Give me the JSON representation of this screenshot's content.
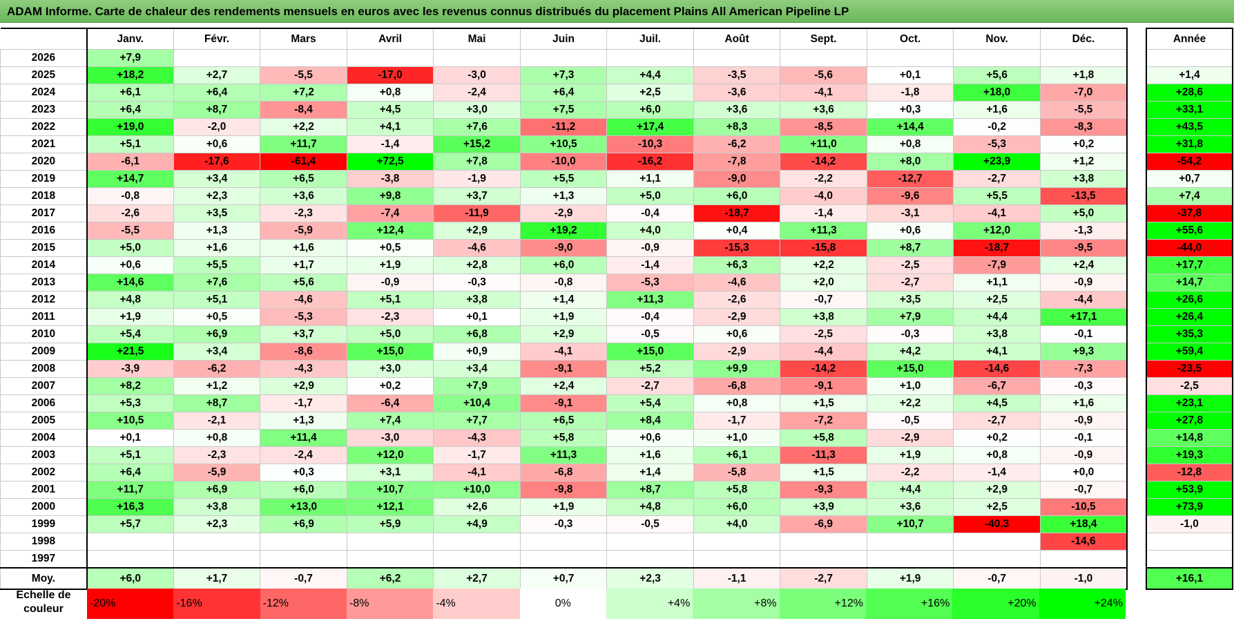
{
  "title": "ADAM Informe. Carte de chaleur des rendements mensuels en euros avec les revenus connus distribués du placement Plains All American Pipeline LP",
  "months": [
    "Janv.",
    "Févr.",
    "Mars",
    "Avril",
    "Mai",
    "Juin",
    "Juil.",
    "Août",
    "Sept.",
    "Oct.",
    "Nov.",
    "Déc."
  ],
  "year_header": "Année",
  "avg_label": "Moy.",
  "scale_label_line1": "Echelle de",
  "scale_label_line2": "couleur",
  "colors": {
    "neg_strong": "#ff0000",
    "pos_strong": "#00ff00",
    "neutral": "#ffffff"
  },
  "chart_data": {
    "type": "heatmap",
    "title": "ADAM Informe. Carte de chaleur des rendements mensuels en euros avec les revenus connus distribués du placement Plains All American Pipeline LP",
    "x": [
      "Janv.",
      "Févr.",
      "Mars",
      "Avril",
      "Mai",
      "Juin",
      "Juil.",
      "Août",
      "Sept.",
      "Oct.",
      "Nov.",
      "Déc."
    ],
    "rows": [
      {
        "year": "2026",
        "values": [
          "+7,9",
          "",
          "",
          "",
          "",
          "",
          "",
          "",
          "",
          "",
          "",
          ""
        ],
        "annual": ""
      },
      {
        "year": "2025",
        "values": [
          "+18,2",
          "+2,7",
          "-5,5",
          "-17,0",
          "-3,0",
          "+7,3",
          "+4,4",
          "-3,5",
          "-5,6",
          "+0,1",
          "+5,6",
          "+1,8"
        ],
        "annual": "+1,4"
      },
      {
        "year": "2024",
        "values": [
          "+6,1",
          "+6,4",
          "+7,2",
          "+0,8",
          "-2,4",
          "+6,4",
          "+2,5",
          "-3,6",
          "-4,1",
          "-1,8",
          "+18,0",
          "-7,0"
        ],
        "annual": "+28,6"
      },
      {
        "year": "2023",
        "values": [
          "+6,4",
          "+8,7",
          "-8,4",
          "+4,5",
          "+3,0",
          "+7,5",
          "+6,0",
          "+3,6",
          "+3,6",
          "+0,3",
          "+1,6",
          "-5,5"
        ],
        "annual": "+33,1"
      },
      {
        "year": "2022",
        "values": [
          "+19,0",
          "-2,0",
          "+2,2",
          "+4,1",
          "+7,6",
          "-11,2",
          "+17,4",
          "+8,3",
          "-8,5",
          "+14,4",
          "-0,2",
          "-8,3"
        ],
        "annual": "+43,5"
      },
      {
        "year": "2021",
        "values": [
          "+5,1",
          "+0,6",
          "+11,7",
          "-1,4",
          "+15,2",
          "+10,5",
          "-10,3",
          "-6,2",
          "+11,0",
          "+0,8",
          "-5,3",
          "+0,2"
        ],
        "annual": "+31,8"
      },
      {
        "year": "2020",
        "values": [
          "-6,1",
          "-17,6",
          "-61,4",
          "+72,5",
          "+7,8",
          "-10,0",
          "-16,2",
          "-7,8",
          "-14,2",
          "+8,0",
          "+23,9",
          "+1,2"
        ],
        "annual": "-54,2"
      },
      {
        "year": "2019",
        "values": [
          "+14,7",
          "+3,4",
          "+6,5",
          "-3,8",
          "-1,9",
          "+5,5",
          "+1,1",
          "-9,0",
          "-2,2",
          "-12,7",
          "-2,7",
          "+3,8"
        ],
        "annual": "+0,7"
      },
      {
        "year": "2018",
        "values": [
          "-0,8",
          "+2,3",
          "+3,6",
          "+9,8",
          "+3,7",
          "+1,3",
          "+5,0",
          "+6,0",
          "-4,0",
          "-9,6",
          "+5,5",
          "-13,5"
        ],
        "annual": "+7,4"
      },
      {
        "year": "2017",
        "values": [
          "-2,6",
          "+3,5",
          "-2,3",
          "-7,4",
          "-11,9",
          "-2,9",
          "-0,4",
          "-18,7",
          "-1,4",
          "-3,1",
          "-4,1",
          "+5,0"
        ],
        "annual": "-37,8"
      },
      {
        "year": "2016",
        "values": [
          "-5,5",
          "+1,3",
          "-5,9",
          "+12,4",
          "+2,9",
          "+19,2",
          "+4,0",
          "+0,4",
          "+11,3",
          "+0,6",
          "+12,0",
          "-1,3"
        ],
        "annual": "+55,6"
      },
      {
        "year": "2015",
        "values": [
          "+5,0",
          "+1,6",
          "+1,6",
          "+0,5",
          "-4,6",
          "-9,0",
          "-0,9",
          "-15,3",
          "-15,8",
          "+8,7",
          "-18,7",
          "-9,5"
        ],
        "annual": "-44,0"
      },
      {
        "year": "2014",
        "values": [
          "+0,6",
          "+5,5",
          "+1,7",
          "+1,9",
          "+2,8",
          "+6,0",
          "-1,4",
          "+6,3",
          "+2,2",
          "-2,5",
          "-7,9",
          "+2,4"
        ],
        "annual": "+17,7"
      },
      {
        "year": "2013",
        "values": [
          "+14,6",
          "+7,6",
          "+5,6",
          "-0,9",
          "-0,3",
          "-0,8",
          "-5,3",
          "-4,6",
          "+2,0",
          "-2,7",
          "+1,1",
          "-0,9"
        ],
        "annual": "+14,7"
      },
      {
        "year": "2012",
        "values": [
          "+4,8",
          "+5,1",
          "-4,6",
          "+5,1",
          "+3,8",
          "+1,4",
          "+11,3",
          "-2,6",
          "-0,7",
          "+3,5",
          "+2,5",
          "-4,4"
        ],
        "annual": "+26,6"
      },
      {
        "year": "2011",
        "values": [
          "+1,9",
          "+0,5",
          "-5,3",
          "-2,3",
          "+0,1",
          "+1,9",
          "-0,4",
          "-2,9",
          "+3,8",
          "+7,9",
          "+4,4",
          "+17,1"
        ],
        "annual": "+26,4"
      },
      {
        "year": "2010",
        "values": [
          "+5,4",
          "+6,9",
          "+3,7",
          "+5,0",
          "+6,8",
          "+2,9",
          "-0,5",
          "+0,6",
          "-2,5",
          "-0,3",
          "+3,8",
          "-0,1"
        ],
        "annual": "+35,3"
      },
      {
        "year": "2009",
        "values": [
          "+21,5",
          "+3,4",
          "-8,6",
          "+15,0",
          "+0,9",
          "-4,1",
          "+15,0",
          "-2,9",
          "-4,4",
          "+4,2",
          "+4,1",
          "+9,3"
        ],
        "annual": "+59,4"
      },
      {
        "year": "2008",
        "values": [
          "-3,9",
          "-6,2",
          "-4,3",
          "+3,0",
          "+3,4",
          "-9,1",
          "+5,2",
          "+9,9",
          "-14,2",
          "+15,0",
          "-14,6",
          "-7,3"
        ],
        "annual": "-23,5"
      },
      {
        "year": "2007",
        "values": [
          "+8,2",
          "+1,2",
          "+2,9",
          "+0,2",
          "+7,9",
          "+2,4",
          "-2,7",
          "-6,8",
          "-9,1",
          "+1,0",
          "-6,7",
          "-0,3"
        ],
        "annual": "-2,5"
      },
      {
        "year": "2006",
        "values": [
          "+5,3",
          "+8,7",
          "-1,7",
          "-6,4",
          "+10,4",
          "-9,1",
          "+5,4",
          "+0,8",
          "+1,5",
          "+2,2",
          "+4,5",
          "+1,6"
        ],
        "annual": "+23,1"
      },
      {
        "year": "2005",
        "values": [
          "+10,5",
          "-2,1",
          "+1,3",
          "+7,4",
          "+7,7",
          "+6,5",
          "+8,4",
          "-1,7",
          "-7,2",
          "-0,5",
          "-2,7",
          "-0,9"
        ],
        "annual": "+27,8"
      },
      {
        "year": "2004",
        "values": [
          "+0,1",
          "+0,8",
          "+11,4",
          "-3,0",
          "-4,3",
          "+5,8",
          "+0,6",
          "+1,0",
          "+5,8",
          "-2,9",
          "+0,2",
          "-0,1"
        ],
        "annual": "+14,8"
      },
      {
        "year": "2003",
        "values": [
          "+5,1",
          "-2,3",
          "-2,4",
          "+12,0",
          "-1,7",
          "+11,3",
          "+1,6",
          "+6,1",
          "-11,3",
          "+1,9",
          "+0,8",
          "-0,9"
        ],
        "annual": "+19,3"
      },
      {
        "year": "2002",
        "values": [
          "+6,4",
          "-5,9",
          "+0,3",
          "+3,1",
          "-4,1",
          "-6,8",
          "+1,4",
          "-5,8",
          "+1,5",
          "-2,2",
          "-1,4",
          "+0,0"
        ],
        "annual": "-12,8"
      },
      {
        "year": "2001",
        "values": [
          "+11,7",
          "+6,9",
          "+6,0",
          "+10,7",
          "+10,0",
          "-9,8",
          "+8,7",
          "+5,8",
          "-9,3",
          "+4,4",
          "+2,9",
          "-0,7"
        ],
        "annual": "+53,9"
      },
      {
        "year": "2000",
        "values": [
          "+16,3",
          "+3,8",
          "+13,0",
          "+12,1",
          "+2,6",
          "+1,9",
          "+4,8",
          "+6,0",
          "+3,9",
          "+3,6",
          "+2,5",
          "-10,5"
        ],
        "annual": "+73,9"
      },
      {
        "year": "1999",
        "values": [
          "+5,7",
          "+2,3",
          "+6,9",
          "+5,9",
          "+4,9",
          "-0,3",
          "-0,5",
          "+4,0",
          "-6,9",
          "+10,7",
          "-40,3",
          "+18,4"
        ],
        "annual": "-1,0"
      },
      {
        "year": "1998",
        "values": [
          "",
          "",
          "",
          "",
          "",
          "",
          "",
          "",
          "",
          "",
          "",
          "-14,6"
        ],
        "annual": ""
      },
      {
        "year": "1997",
        "values": [
          "",
          "",
          "",
          "",
          "",
          "",
          "",
          "",
          "",
          "",
          "",
          ""
        ],
        "annual": ""
      }
    ],
    "averages": [
      "+6,0",
      "+1,7",
      "-0,7",
      "+6,2",
      "+2,7",
      "+0,7",
      "+2,3",
      "-1,1",
      "-2,7",
      "+1,9",
      "-0,7",
      "-1,0"
    ],
    "average_annual": "+16,1",
    "color_scale": [
      "-20%",
      "-16%",
      "-12%",
      "-8%",
      "-4%",
      "0%",
      "+4%",
      "+8%",
      "+12%",
      "+16%",
      "+20%",
      "+24%"
    ],
    "color_range": [
      -20,
      24
    ]
  }
}
